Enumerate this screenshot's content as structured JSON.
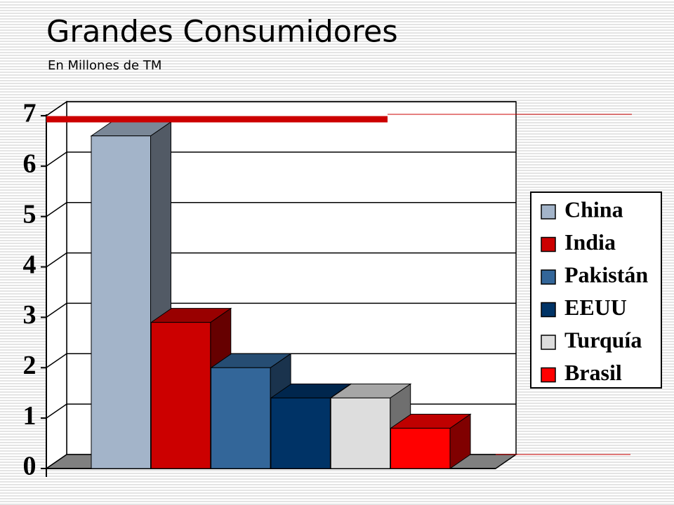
{
  "chart_data": {
    "type": "bar3d",
    "title": "Grandes Consumidores",
    "subtitle": "En Millones de TM",
    "categories": [
      "China",
      "India",
      "Pakistán",
      "EEUU",
      "Turquía",
      "Brasil"
    ],
    "values": [
      6.6,
      2.9,
      2.0,
      1.4,
      1.4,
      0.8
    ],
    "colors": [
      "#a3b4c9",
      "#cc0000",
      "#336699",
      "#003366",
      "#dddddd",
      "#ff0000"
    ],
    "ylim": [
      0,
      7
    ],
    "yticks": [
      0,
      1,
      2,
      3,
      4,
      5,
      6,
      7
    ],
    "grid": true,
    "legend": "right"
  }
}
